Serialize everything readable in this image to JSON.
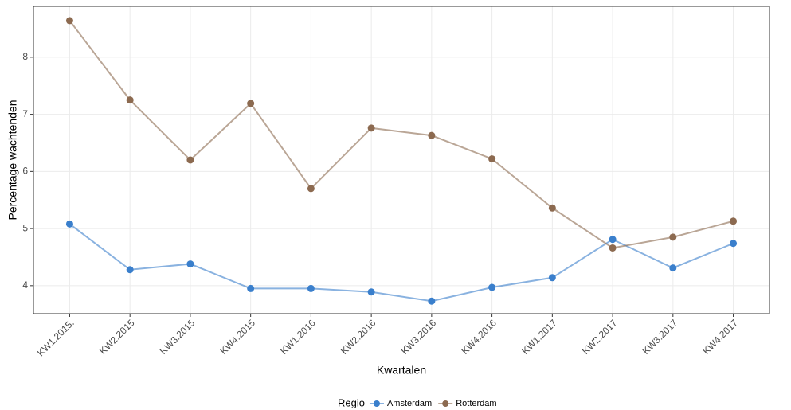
{
  "chart_data": {
    "type": "line",
    "x_label": "Kwartalen",
    "y_label": "Percentage wachtenden",
    "legend_title": "Regio",
    "legend_position": "bottom",
    "categories": [
      "KW1.2015.",
      "KW2.2015",
      "KW3.2015",
      "KW4.2015",
      "KW1.2016",
      "KW2.2016",
      "KW3.2016",
      "KW4.2016",
      "KW1.2017",
      "KW2.2017",
      "KW3.2017",
      "KW4.2017"
    ],
    "series": [
      {
        "name": "Amsterdam",
        "color": "#3a7fcc",
        "values": [
          5.08,
          4.28,
          4.38,
          3.95,
          3.95,
          3.89,
          3.73,
          3.97,
          4.14,
          4.81,
          4.31,
          4.74
        ]
      },
      {
        "name": "Rotterdam",
        "color": "#8c6a50",
        "values": [
          8.64,
          7.25,
          6.2,
          7.19,
          5.7,
          6.76,
          6.63,
          6.22,
          5.36,
          4.66,
          4.85,
          5.13
        ]
      }
    ],
    "ylim": [
      3.51,
      8.89
    ],
    "yticks": [
      4,
      5,
      6,
      7,
      8
    ],
    "grid": true
  }
}
